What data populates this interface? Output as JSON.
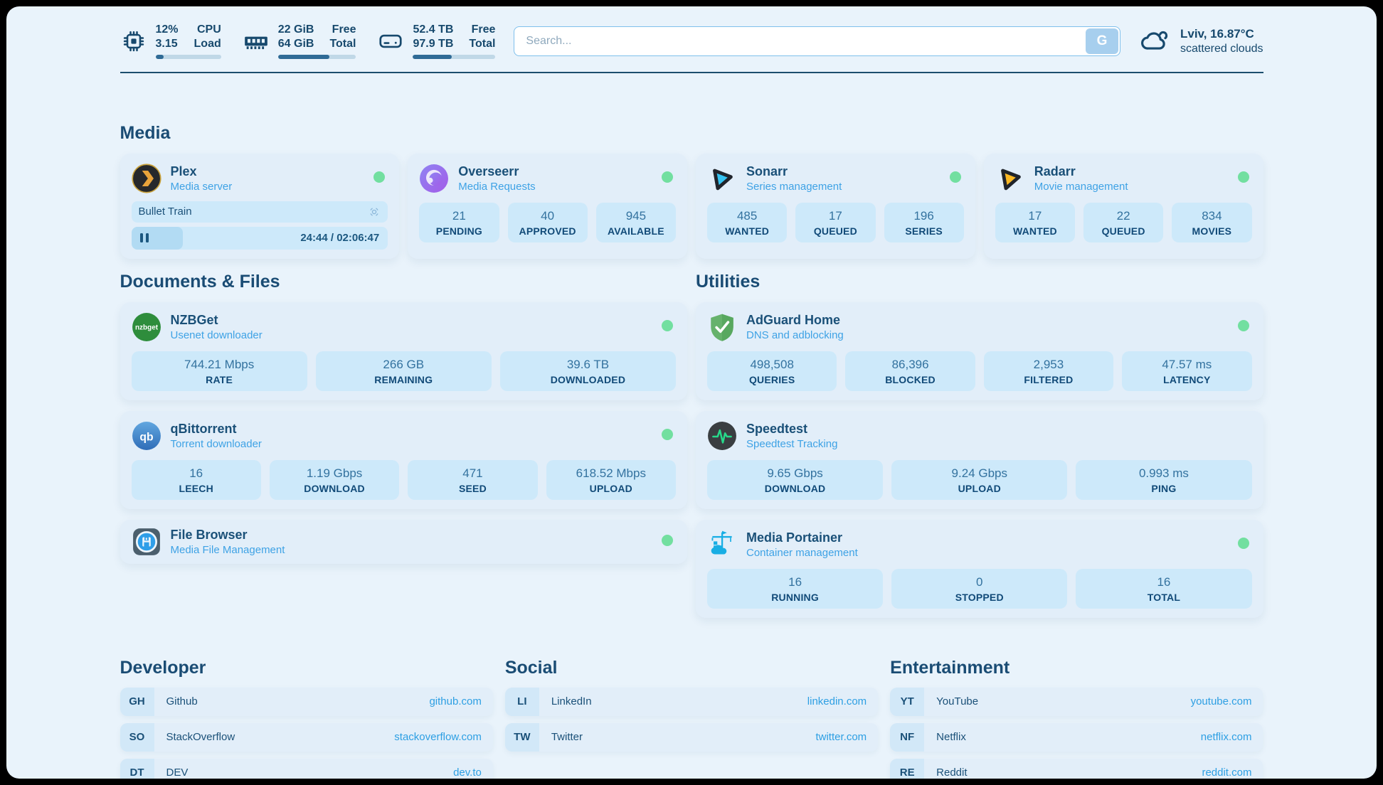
{
  "colors": {
    "page_bg": "#e9f3fb",
    "card_bg": "#e2eef9",
    "stat_box_bg": "#cde9fa",
    "navy": "#1a4c74",
    "accent_blue": "#3ea2e5",
    "link_blue": "#2d9fe3",
    "status_green": "#72dfa0",
    "bar_fill": "#2f6b96"
  },
  "header": {
    "stats": [
      {
        "icon": "cpu-icon",
        "top_value": "12%",
        "bottom_value": "3.15",
        "top_label": "CPU",
        "bottom_label": "Load",
        "progress": 12
      },
      {
        "icon": "ram-icon",
        "top_value": "22 GiB",
        "bottom_value": "64 GiB",
        "top_label": "Free",
        "bottom_label": "Total",
        "progress": 66
      },
      {
        "icon": "disk-icon",
        "top_value": "52.4 TB",
        "bottom_value": "97.9 TB",
        "top_label": "Free",
        "bottom_label": "Total",
        "progress": 47
      }
    ],
    "search": {
      "placeholder": "Search...",
      "button_label": "G"
    },
    "weather": {
      "location": "Lviv, 16.87°C",
      "condition": "scattered clouds"
    }
  },
  "sections": {
    "media": {
      "title": "Media",
      "plex": {
        "title": "Plex",
        "subtitle": "Media server",
        "now_playing": "Bullet Train",
        "time": "24:44 / 02:06:47",
        "progress": 20
      },
      "overseerr": {
        "title": "Overseerr",
        "subtitle": "Media Requests",
        "stats": [
          {
            "value": "21",
            "label": "PENDING"
          },
          {
            "value": "40",
            "label": "APPROVED"
          },
          {
            "value": "945",
            "label": "AVAILABLE"
          }
        ]
      },
      "sonarr": {
        "title": "Sonarr",
        "subtitle": "Series management",
        "stats": [
          {
            "value": "485",
            "label": "WANTED"
          },
          {
            "value": "17",
            "label": "QUEUED"
          },
          {
            "value": "196",
            "label": "SERIES"
          }
        ]
      },
      "radarr": {
        "title": "Radarr",
        "subtitle": "Movie management",
        "stats": [
          {
            "value": "17",
            "label": "WANTED"
          },
          {
            "value": "22",
            "label": "QUEUED"
          },
          {
            "value": "834",
            "label": "MOVIES"
          }
        ]
      }
    },
    "documents": {
      "title": "Documents & Files",
      "nzbget": {
        "title": "NZBGet",
        "subtitle": "Usenet downloader",
        "stats": [
          {
            "value": "744.21 Mbps",
            "label": "RATE"
          },
          {
            "value": "266 GB",
            "label": "REMAINING"
          },
          {
            "value": "39.6 TB",
            "label": "DOWNLOADED"
          }
        ]
      },
      "qbittorrent": {
        "title": "qBittorrent",
        "subtitle": "Torrent downloader",
        "stats": [
          {
            "value": "16",
            "label": "LEECH"
          },
          {
            "value": "1.19 Gbps",
            "label": "DOWNLOAD"
          },
          {
            "value": "471",
            "label": "SEED"
          },
          {
            "value": "618.52 Mbps",
            "label": "UPLOAD"
          }
        ]
      },
      "filebrowser": {
        "title": "File Browser",
        "subtitle": "Media File Management"
      }
    },
    "utilities": {
      "title": "Utilities",
      "adguard": {
        "title": "AdGuard Home",
        "subtitle": "DNS and adblocking",
        "stats": [
          {
            "value": "498,508",
            "label": "QUERIES"
          },
          {
            "value": "86,396",
            "label": "BLOCKED"
          },
          {
            "value": "2,953",
            "label": "FILTERED"
          },
          {
            "value": "47.57 ms",
            "label": "LATENCY"
          }
        ]
      },
      "speedtest": {
        "title": "Speedtest",
        "subtitle": "Speedtest Tracking",
        "stats": [
          {
            "value": "9.65 Gbps",
            "label": "DOWNLOAD"
          },
          {
            "value": "9.24 Gbps",
            "label": "UPLOAD"
          },
          {
            "value": "0.993 ms",
            "label": "PING"
          }
        ]
      },
      "portainer": {
        "title": "Media Portainer",
        "subtitle": "Container management",
        "stats": [
          {
            "value": "16",
            "label": "RUNNING"
          },
          {
            "value": "0",
            "label": "STOPPED"
          },
          {
            "value": "16",
            "label": "TOTAL"
          }
        ]
      }
    },
    "developer": {
      "title": "Developer",
      "links": [
        {
          "tag": "GH",
          "name": "Github",
          "url": "github.com"
        },
        {
          "tag": "SO",
          "name": "StackOverflow",
          "url": "stackoverflow.com"
        },
        {
          "tag": "DT",
          "name": "DEV",
          "url": "dev.to"
        }
      ]
    },
    "social": {
      "title": "Social",
      "links": [
        {
          "tag": "LI",
          "name": "LinkedIn",
          "url": "linkedin.com"
        },
        {
          "tag": "TW",
          "name": "Twitter",
          "url": "twitter.com"
        }
      ]
    },
    "entertainment": {
      "title": "Entertainment",
      "links": [
        {
          "tag": "YT",
          "name": "YouTube",
          "url": "youtube.com"
        },
        {
          "tag": "NF",
          "name": "Netflix",
          "url": "netflix.com"
        },
        {
          "tag": "RE",
          "name": "Reddit",
          "url": "reddit.com"
        }
      ]
    }
  }
}
